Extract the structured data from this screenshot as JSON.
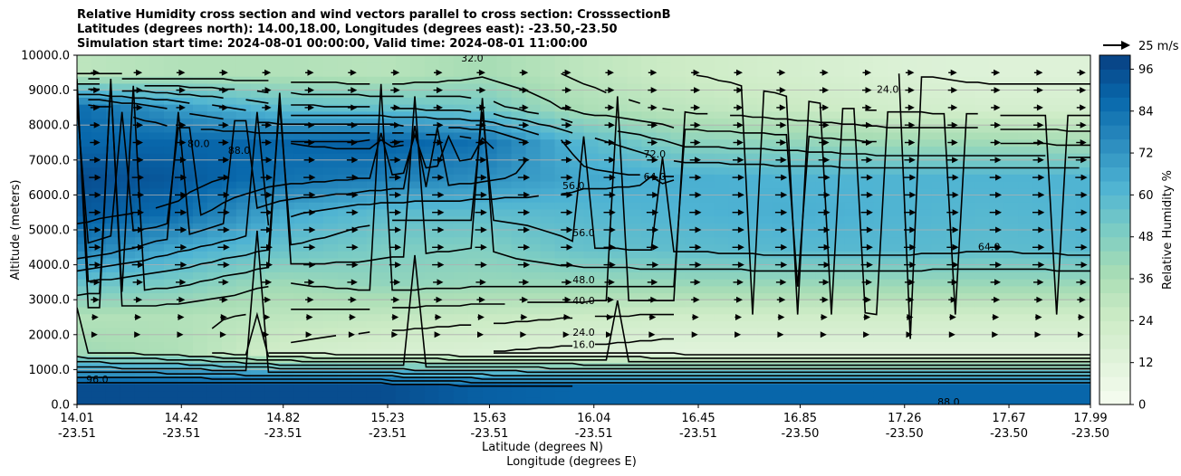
{
  "chart_data": {
    "type": "heatmap",
    "title_lines": [
      "Relative Humidity cross section and wind vectors parallel to cross section: CrosssectionB",
      "Latitudes (degrees north): 14.00,18.00, Longitudes (degrees east): -23.50,-23.50",
      "Simulation start time: 2024-08-01 00:00:00, Valid time: 2024-08-01 11:00:00"
    ],
    "ylabel": "Altitude (meters)",
    "xlabel_lat": "Latitude (degrees N)",
    "xlabel_lon": "Longitude (degrees E)",
    "y_ticks": [
      "0.0",
      "1000.0",
      "2000.0",
      "3000.0",
      "4000.0",
      "5000.0",
      "6000.0",
      "7000.0",
      "8000.0",
      "9000.0",
      "10000.0"
    ],
    "ylim": [
      0,
      10000
    ],
    "x_ticks_lat": [
      "14.01",
      "14.42",
      "14.82",
      "15.23",
      "15.63",
      "16.04",
      "16.45",
      "16.85",
      "17.26",
      "17.67",
      "17.99"
    ],
    "x_ticks_lon": [
      "-23.51",
      "-23.51",
      "-23.51",
      "-23.51",
      "-23.51",
      "-23.51",
      "-23.51",
      "-23.50",
      "-23.50",
      "-23.50",
      "-23.50"
    ],
    "colorbar": {
      "label": "Relative Humidity %",
      "ticks": [
        "0",
        "12",
        "24",
        "36",
        "48",
        "60",
        "72",
        "84",
        "96"
      ],
      "range": [
        0,
        100
      ]
    },
    "quiver_key": "25 m/s",
    "grid": true,
    "colormap": [
      "#f7fcf0",
      "#e0f3db",
      "#ccebc5",
      "#a8ddb5",
      "#7bccc4",
      "#4eb3d3",
      "#2b8cbe",
      "#0868ac",
      "#084081"
    ],
    "rh_field": {
      "x_fraction": [
        0.0,
        0.1,
        0.2,
        0.3,
        0.4,
        0.5,
        0.6,
        0.7,
        0.8,
        0.9,
        1.0
      ],
      "altitude_m": [
        500,
        1500,
        2500,
        3500,
        4500,
        5500,
        6500,
        7500,
        8500,
        9500
      ],
      "values": [
        [
          96,
          96,
          96,
          96,
          90,
          88,
          88,
          88,
          88,
          88,
          88
        ],
        [
          40,
          35,
          22,
          18,
          16,
          14,
          12,
          12,
          12,
          12,
          12
        ],
        [
          34,
          34,
          30,
          28,
          26,
          24,
          22,
          22,
          22,
          22,
          22
        ],
        [
          56,
          50,
          40,
          44,
          42,
          42,
          42,
          42,
          42,
          42,
          42
        ],
        [
          80,
          66,
          56,
          50,
          48,
          56,
          58,
          60,
          60,
          58,
          60
        ],
        [
          92,
          86,
          66,
          58,
          58,
          60,
          62,
          64,
          62,
          60,
          62
        ],
        [
          96,
          92,
          84,
          80,
          74,
          66,
          64,
          62,
          62,
          62,
          62
        ],
        [
          88,
          88,
          88,
          90,
          84,
          60,
          46,
          44,
          40,
          40,
          38
        ],
        [
          86,
          70,
          58,
          56,
          52,
          36,
          30,
          26,
          22,
          20,
          20
        ],
        [
          30,
          34,
          34,
          32,
          38,
          30,
          24,
          20,
          16,
          14,
          14
        ]
      ]
    },
    "contour_labels": [
      "96.0",
      "88.0",
      "80.0",
      "72.0",
      "64.0",
      "56.0",
      "48.0",
      "40.0",
      "32.0",
      "24.0",
      "16.0"
    ],
    "wind": {
      "rows_altitude_m": [
        2000,
        2500,
        3000,
        3500,
        4000,
        4500,
        5000,
        5500,
        6000,
        6500,
        7000,
        7500,
        8000,
        8500,
        9000,
        9500
      ],
      "u_ms": [
        6,
        8,
        10,
        12,
        14,
        14,
        14,
        14,
        14,
        14,
        13,
        12,
        12,
        11,
        11,
        10
      ]
    }
  }
}
